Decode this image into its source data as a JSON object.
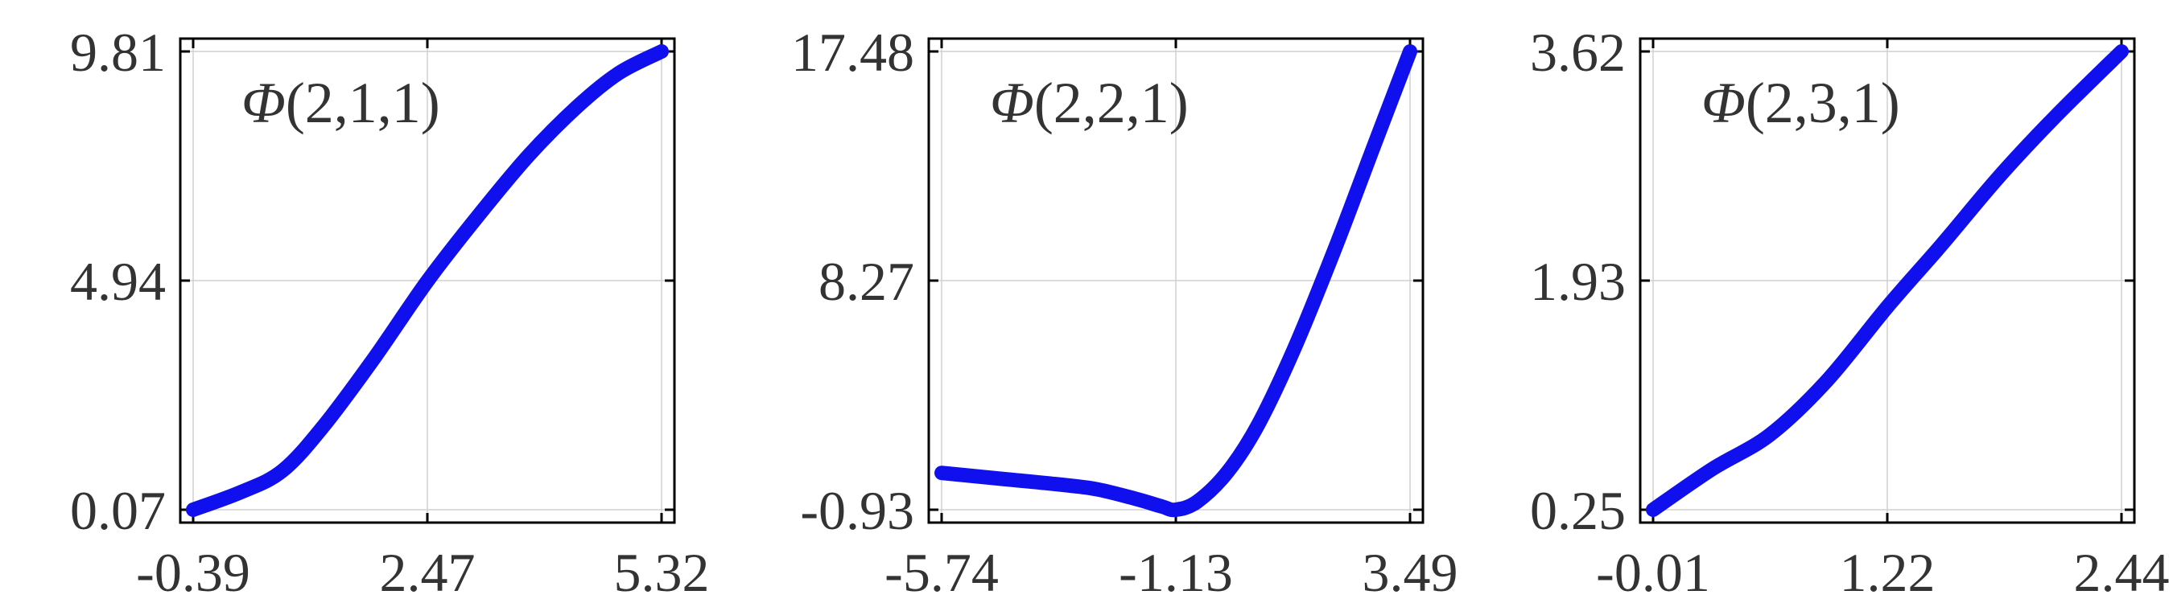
{
  "chart_data": [
    {
      "type": "line",
      "title": "Φ(2,1,1)",
      "xticks": [
        "-0.39",
        "2.47",
        "5.32"
      ],
      "yticks": [
        "0.07",
        "4.94",
        "9.81"
      ],
      "xlim": [
        -0.39,
        5.32
      ],
      "ylim": [
        0.07,
        9.81
      ],
      "grid": true,
      "color": "#1010ee",
      "x": [
        -0.39,
        0.2,
        0.7,
        1.2,
        1.8,
        2.47,
        3.1,
        3.7,
        4.3,
        4.8,
        5.32
      ],
      "y": [
        0.07,
        0.45,
        0.9,
        1.85,
        3.25,
        4.94,
        6.35,
        7.6,
        8.65,
        9.35,
        9.81
      ]
    },
    {
      "type": "line",
      "title": "Φ(2,2,1)",
      "xticks": [
        "-5.74",
        "-1.13",
        "3.49"
      ],
      "yticks": [
        "-0.93",
        "8.27",
        "17.48"
      ],
      "xlim": [
        -5.74,
        3.49
      ],
      "ylim": [
        -0.93,
        17.48
      ],
      "grid": true,
      "color": "#1010ee",
      "x": [
        -5.74,
        -4.5,
        -3.5,
        -2.7,
        -1.9,
        -1.4,
        -1.13,
        -0.7,
        -0.1,
        0.5,
        1.2,
        2.0,
        2.8,
        3.49
      ],
      "y": [
        0.55,
        0.3,
        0.1,
        -0.1,
        -0.5,
        -0.8,
        -0.93,
        -0.6,
        0.6,
        2.5,
        5.5,
        9.5,
        13.8,
        17.48
      ]
    },
    {
      "type": "line",
      "title": "Φ(2,3,1)",
      "xticks": [
        "-0.01",
        "1.22",
        "2.44"
      ],
      "yticks": [
        "0.25",
        "1.93",
        "3.62"
      ],
      "xlim": [
        -0.01,
        2.44
      ],
      "ylim": [
        0.25,
        3.62
      ],
      "grid": true,
      "color": "#1010ee",
      "x": [
        -0.01,
        0.3,
        0.6,
        0.9,
        1.22,
        1.5,
        1.8,
        2.1,
        2.44
      ],
      "y": [
        0.25,
        0.55,
        0.8,
        1.2,
        1.75,
        2.2,
        2.7,
        3.15,
        3.62
      ]
    }
  ]
}
